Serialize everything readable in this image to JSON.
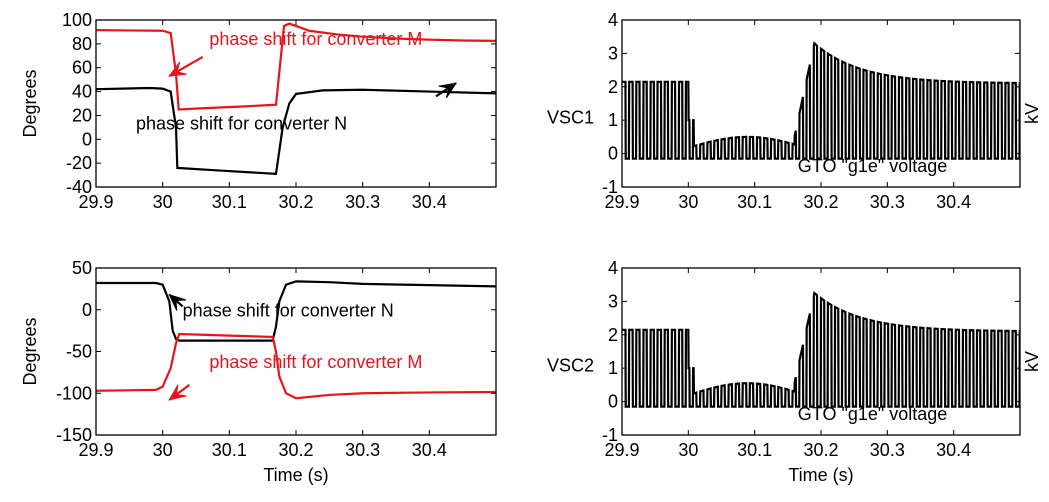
{
  "chart_data": [
    {
      "id": "p1",
      "type": "line",
      "xlim": [
        29.9,
        30.5
      ],
      "ylim": [
        -40,
        100
      ],
      "xticks": [
        "29.9",
        "30",
        "30.1",
        "30.2",
        "30.3",
        "30.4"
      ],
      "yticks": [
        "-40",
        "-20",
        "0",
        "20",
        "40",
        "60",
        "80",
        "100"
      ],
      "ylabel": "Degrees",
      "xlabel": "",
      "grid": false,
      "series": [
        {
          "color": "#e8141c",
          "points": [
            [
              29.9,
              91.5
            ],
            [
              30.0,
              91.0
            ],
            [
              30.012,
              89.0
            ],
            [
              30.02,
              55.0
            ],
            [
              30.024,
              25.0
            ],
            [
              30.06,
              26.0
            ],
            [
              30.12,
              27.5
            ],
            [
              30.17,
              29.0
            ],
            [
              30.182,
              95.0
            ],
            [
              30.19,
              97.0
            ],
            [
              30.22,
              91.0
            ],
            [
              30.26,
              88.0
            ],
            [
              30.3,
              86.0
            ],
            [
              30.35,
              84.5
            ],
            [
              30.4,
              83.5
            ],
            [
              30.45,
              82.8
            ],
            [
              30.5,
              82.5
            ]
          ]
        },
        {
          "color": "#000000",
          "points": [
            [
              29.9,
              42.0
            ],
            [
              29.98,
              43.0
            ],
            [
              30.0,
              42.5
            ],
            [
              30.012,
              40.0
            ],
            [
              30.02,
              10.0
            ],
            [
              30.022,
              -24.0
            ],
            [
              30.08,
              -26.0
            ],
            [
              30.14,
              -28.0
            ],
            [
              30.17,
              -29.0
            ],
            [
              30.18,
              10.0
            ],
            [
              30.19,
              30.0
            ],
            [
              30.2,
              38.0
            ],
            [
              30.24,
              41.0
            ],
            [
              30.3,
              41.5
            ],
            [
              30.4,
              40.0
            ],
            [
              30.5,
              38.5
            ]
          ]
        }
      ],
      "annotations": [
        {
          "text": "phase shift for converter M",
          "color": "#e8141c",
          "x": 30.07,
          "y": 79
        },
        {
          "text": "phase shift for converter N",
          "color": "#000000",
          "x": 29.96,
          "y": 8
        }
      ],
      "arrows": [
        {
          "color": "#e8141c",
          "from": [
            30.06,
            69
          ],
          "to": [
            30.01,
            53
          ]
        },
        {
          "color": "#000000",
          "from": [
            30.41,
            36
          ],
          "to": [
            30.44,
            47
          ]
        }
      ]
    },
    {
      "id": "p2",
      "type": "line",
      "xlim": [
        29.9,
        30.5
      ],
      "ylim": [
        -1,
        4
      ],
      "xticks": [
        "29.9",
        "30",
        "30.1",
        "30.2",
        "30.3",
        "30.4"
      ],
      "yticks": [
        "-1",
        "0",
        "1",
        "2",
        "3",
        "4"
      ],
      "ylabel": "VSC1",
      "right_label": "kV",
      "xlabel": "",
      "grid": false,
      "wave": {
        "baseline": -0.15,
        "pre": 2.15,
        "dip_start": 30.0,
        "dip_end": 30.16,
        "dip_peak": 0.5,
        "spike_at": 30.19,
        "spike_peak": 3.3,
        "settle": 2.1,
        "period": 0.0107
      },
      "series": [
        {
          "color": "#000000"
        }
      ],
      "annotations": [
        {
          "text": "GTO \"g1e\" voltage",
          "color": "#000000",
          "x": 30.165,
          "y": -0.55
        }
      ]
    },
    {
      "id": "p3",
      "type": "line",
      "xlim": [
        29.9,
        30.5
      ],
      "ylim": [
        -150,
        50
      ],
      "xticks": [
        "29.9",
        "30",
        "30.1",
        "30.2",
        "30.3",
        "30.4"
      ],
      "yticks": [
        "-150",
        "-100",
        "-50",
        "0",
        "50"
      ],
      "ylabel": "Degrees",
      "xlabel": "Time (s)",
      "grid": false,
      "series": [
        {
          "color": "#000000",
          "points": [
            [
              29.9,
              32.0
            ],
            [
              29.99,
              32.0
            ],
            [
              30.0,
              30.0
            ],
            [
              30.01,
              10.0
            ],
            [
              30.015,
              -25.0
            ],
            [
              30.02,
              -35.0
            ],
            [
              30.025,
              -37.0
            ],
            [
              30.1,
              -37.0
            ],
            [
              30.165,
              -37.0
            ],
            [
              30.17,
              -20.0
            ],
            [
              30.175,
              10.0
            ],
            [
              30.185,
              30.0
            ],
            [
              30.2,
              34.0
            ],
            [
              30.25,
              33.0
            ],
            [
              30.3,
              31.0
            ],
            [
              30.4,
              29.5
            ],
            [
              30.5,
              28.0
            ]
          ]
        },
        {
          "color": "#e8141c",
          "points": [
            [
              29.9,
              -97.0
            ],
            [
              29.99,
              -96.0
            ],
            [
              30.0,
              -92.0
            ],
            [
              30.012,
              -70.0
            ],
            [
              30.02,
              -40.0
            ],
            [
              30.025,
              -29.0
            ],
            [
              30.1,
              -31.0
            ],
            [
              30.165,
              -32.5
            ],
            [
              30.17,
              -50.0
            ],
            [
              30.175,
              -80.0
            ],
            [
              30.185,
              -100.0
            ],
            [
              30.2,
              -106.0
            ],
            [
              30.25,
              -102.0
            ],
            [
              30.3,
              -100.0
            ],
            [
              30.4,
              -99.0
            ],
            [
              30.5,
              -98.5
            ]
          ]
        }
      ],
      "annotations": [
        {
          "text": "phase shift for converter N",
          "color": "#000000",
          "x": 30.03,
          "y": -8
        },
        {
          "text": "phase shift for converter M",
          "color": "#e8141c",
          "x": 30.07,
          "y": -70
        }
      ],
      "arrows": [
        {
          "color": "#000000",
          "from": [
            30.03,
            4
          ],
          "to": [
            30.01,
            18
          ]
        },
        {
          "color": "#e8141c",
          "from": [
            30.04,
            -90
          ],
          "to": [
            30.01,
            -108
          ]
        }
      ]
    },
    {
      "id": "p4",
      "type": "line",
      "xlim": [
        29.9,
        30.5
      ],
      "ylim": [
        -1,
        4
      ],
      "xticks": [
        "29.9",
        "30",
        "30.1",
        "30.2",
        "30.3",
        "30.4"
      ],
      "yticks": [
        "-1",
        "0",
        "1",
        "2",
        "3",
        "4"
      ],
      "ylabel": "VSC2",
      "right_label": "kV",
      "xlabel": "Time (s)",
      "grid": false,
      "wave": {
        "baseline": -0.15,
        "pre": 2.15,
        "dip_start": 30.0,
        "dip_end": 30.16,
        "dip_peak": 0.55,
        "spike_at": 30.19,
        "spike_peak": 3.25,
        "settle": 2.1,
        "period": 0.0107
      },
      "series": [
        {
          "color": "#000000"
        }
      ],
      "annotations": [
        {
          "text": "GTO \"g1e\" voltage",
          "color": "#000000",
          "x": 30.165,
          "y": -0.55
        }
      ]
    }
  ]
}
